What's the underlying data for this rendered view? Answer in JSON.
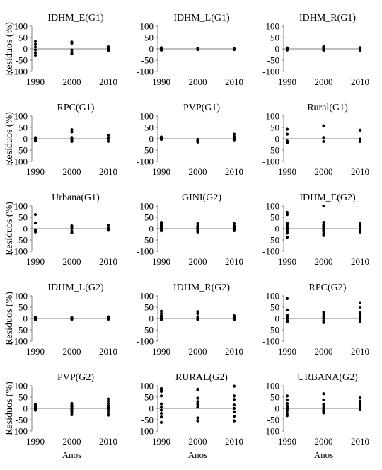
{
  "chart_data": [
    {
      "type": "scatter",
      "title": "IDHM_E(G1)",
      "ylabel": "Resíduos (%)",
      "xlabel": "",
      "x_ticks": [
        "1990",
        "2000",
        "2010"
      ],
      "yticks": [
        100,
        50,
        0,
        -50,
        -100
      ],
      "ylim": [
        -100,
        100
      ],
      "grid": false,
      "points": [
        [
          1990,
          32
        ],
        [
          1990,
          20
        ],
        [
          1990,
          8
        ],
        [
          1990,
          -5
        ],
        [
          1990,
          -18
        ],
        [
          1990,
          -28
        ],
        [
          2000,
          30
        ],
        [
          2000,
          25
        ],
        [
          2000,
          -5
        ],
        [
          2000,
          -15
        ],
        [
          2000,
          -22
        ],
        [
          2010,
          10
        ],
        [
          2010,
          5
        ],
        [
          2010,
          0
        ],
        [
          2010,
          -3
        ],
        [
          2010,
          -8
        ]
      ]
    },
    {
      "type": "scatter",
      "title": "IDHM_L(G1)",
      "ylabel": "",
      "xlabel": "",
      "x_ticks": [
        "1990",
        "2000",
        "2010"
      ],
      "yticks": [
        100,
        50,
        0,
        -50,
        -100
      ],
      "ylim": [
        -100,
        100
      ],
      "grid": false,
      "points": [
        [
          1990,
          5
        ],
        [
          1990,
          2
        ],
        [
          1990,
          0
        ],
        [
          1990,
          -3
        ],
        [
          1990,
          -6
        ],
        [
          2000,
          3
        ],
        [
          2000,
          0
        ],
        [
          2000,
          -3
        ],
        [
          2010,
          1
        ],
        [
          2010,
          -1
        ],
        [
          2010,
          -3
        ]
      ]
    },
    {
      "type": "scatter",
      "title": "IDHM_R(G1)",
      "ylabel": "",
      "xlabel": "",
      "x_ticks": [
        "1990",
        "2000",
        "2010"
      ],
      "yticks": [
        100,
        50,
        0,
        -50,
        -100
      ],
      "ylim": [
        -100,
        100
      ],
      "grid": false,
      "points": [
        [
          1990,
          4
        ],
        [
          1990,
          1
        ],
        [
          1990,
          -2
        ],
        [
          1990,
          -5
        ],
        [
          2000,
          10
        ],
        [
          2000,
          5
        ],
        [
          2000,
          -2
        ],
        [
          2000,
          -6
        ],
        [
          2010,
          5
        ],
        [
          2010,
          1
        ],
        [
          2010,
          -3
        ],
        [
          2010,
          -6
        ]
      ]
    },
    {
      "type": "scatter",
      "title": "RPC(G1)",
      "ylabel": "Resíduos (%)",
      "xlabel": "",
      "x_ticks": [
        "1990",
        "2000",
        "2010"
      ],
      "yticks": [
        100,
        50,
        0,
        -50,
        -100
      ],
      "ylim": [
        -100,
        100
      ],
      "grid": false,
      "points": [
        [
          1990,
          5
        ],
        [
          1990,
          0
        ],
        [
          1990,
          -3
        ],
        [
          1990,
          -8
        ],
        [
          1990,
          -10
        ],
        [
          2000,
          40
        ],
        [
          2000,
          30
        ],
        [
          2000,
          5
        ],
        [
          2000,
          -5
        ],
        [
          2000,
          -12
        ],
        [
          2010,
          15
        ],
        [
          2010,
          5
        ],
        [
          2010,
          -2
        ],
        [
          2010,
          -12
        ]
      ]
    },
    {
      "type": "scatter",
      "title": "PVP(G1)",
      "ylabel": "",
      "xlabel": "",
      "x_ticks": [
        "1990",
        "2000",
        "2010"
      ],
      "yticks": [
        100,
        50,
        0,
        -50,
        -100
      ],
      "ylim": [
        -100,
        100
      ],
      "grid": false,
      "points": [
        [
          1990,
          8
        ],
        [
          1990,
          4
        ],
        [
          1990,
          1
        ],
        [
          1990,
          -3
        ],
        [
          2000,
          -3
        ],
        [
          2000,
          -6
        ],
        [
          2000,
          -10
        ],
        [
          2000,
          -15
        ],
        [
          2010,
          20
        ],
        [
          2010,
          10
        ],
        [
          2010,
          2
        ],
        [
          2010,
          -5
        ]
      ]
    },
    {
      "type": "scatter",
      "title": "Rural(G1)",
      "ylabel": "",
      "xlabel": "",
      "x_ticks": [
        "1990",
        "2000",
        "2010"
      ],
      "yticks": [
        100,
        50,
        0,
        -50,
        -100
      ],
      "ylim": [
        -100,
        100
      ],
      "grid": false,
      "points": [
        [
          1990,
          42
        ],
        [
          1990,
          20
        ],
        [
          1990,
          -10
        ],
        [
          1990,
          -18
        ],
        [
          2000,
          57
        ],
        [
          2000,
          5
        ],
        [
          2000,
          -12
        ],
        [
          2010,
          38
        ],
        [
          2010,
          -2
        ],
        [
          2010,
          -12
        ]
      ]
    },
    {
      "type": "scatter",
      "title": "Urbana(G1)",
      "ylabel": "Resíduos (%)",
      "xlabel": "",
      "x_ticks": [
        "1990",
        "2000",
        "2010"
      ],
      "yticks": [
        100,
        50,
        0,
        -50,
        -100
      ],
      "ylim": [
        -100,
        100
      ],
      "grid": false,
      "points": [
        [
          1990,
          62
        ],
        [
          1990,
          25
        ],
        [
          1990,
          -5
        ],
        [
          1990,
          -15
        ],
        [
          2000,
          12
        ],
        [
          2000,
          2
        ],
        [
          2000,
          -10
        ],
        [
          2000,
          -18
        ],
        [
          2010,
          15
        ],
        [
          2010,
          5
        ],
        [
          2010,
          -3
        ],
        [
          2010,
          -8
        ]
      ]
    },
    {
      "type": "scatter",
      "title": "GINI(G2)",
      "ylabel": "",
      "xlabel": "",
      "x_ticks": [
        "1990",
        "2000",
        "2010"
      ],
      "yticks": [
        100,
        50,
        0,
        -50,
        -100
      ],
      "ylim": [
        -100,
        100
      ],
      "grid": false,
      "points": [
        [
          1990,
          28
        ],
        [
          1990,
          22
        ],
        [
          1990,
          15
        ],
        [
          1990,
          10
        ],
        [
          1990,
          5
        ],
        [
          1990,
          0
        ],
        [
          1990,
          -5
        ],
        [
          1990,
          -10
        ],
        [
          2000,
          22
        ],
        [
          2000,
          12
        ],
        [
          2000,
          5
        ],
        [
          2000,
          0
        ],
        [
          2000,
          -5
        ],
        [
          2000,
          -10
        ],
        [
          2000,
          -15
        ],
        [
          2010,
          22
        ],
        [
          2010,
          12
        ],
        [
          2010,
          6
        ],
        [
          2010,
          0
        ],
        [
          2010,
          -4
        ],
        [
          2010,
          -9
        ]
      ]
    },
    {
      "type": "scatter",
      "title": "IDHM_E(G2)",
      "ylabel": "",
      "xlabel": "",
      "x_ticks": [
        "1990",
        "2000",
        "2010"
      ],
      "yticks": [
        100,
        50,
        0,
        -50,
        -100
      ],
      "ylim": [
        -100,
        100
      ],
      "grid": false,
      "points": [
        [
          1990,
          72
        ],
        [
          1990,
          62
        ],
        [
          1990,
          25
        ],
        [
          1990,
          18
        ],
        [
          1990,
          10
        ],
        [
          1990,
          5
        ],
        [
          1990,
          0
        ],
        [
          1990,
          -5
        ],
        [
          1990,
          -12
        ],
        [
          1990,
          -20
        ],
        [
          1990,
          -38
        ],
        [
          2000,
          100
        ],
        [
          2000,
          28
        ],
        [
          2000,
          18
        ],
        [
          2000,
          12
        ],
        [
          2000,
          6
        ],
        [
          2000,
          0
        ],
        [
          2000,
          -6
        ],
        [
          2000,
          -12
        ],
        [
          2000,
          -22
        ],
        [
          2000,
          -30
        ],
        [
          2010,
          25
        ],
        [
          2010,
          18
        ],
        [
          2010,
          12
        ],
        [
          2010,
          8
        ],
        [
          2010,
          3
        ],
        [
          2010,
          -2
        ],
        [
          2010,
          -8
        ],
        [
          2010,
          -15
        ]
      ]
    },
    {
      "type": "scatter",
      "title": "IDHM_L(G2)",
      "ylabel": "Resíduos (%)",
      "xlabel": "",
      "x_ticks": [
        "1990",
        "2000",
        "2010"
      ],
      "yticks": [
        100,
        50,
        0,
        -50,
        -100
      ],
      "ylim": [
        -100,
        100
      ],
      "grid": false,
      "points": [
        [
          1990,
          6
        ],
        [
          1990,
          3
        ],
        [
          1990,
          0
        ],
        [
          1990,
          -3
        ],
        [
          1990,
          -6
        ],
        [
          2000,
          4
        ],
        [
          2000,
          1
        ],
        [
          2000,
          -2
        ],
        [
          2000,
          -4
        ],
        [
          2010,
          8
        ],
        [
          2010,
          4
        ],
        [
          2010,
          0
        ],
        [
          2010,
          -4
        ]
      ]
    },
    {
      "type": "scatter",
      "title": "IDHM_R(G2)",
      "ylabel": "",
      "xlabel": "",
      "x_ticks": [
        "1990",
        "2000",
        "2010"
      ],
      "yticks": [
        100,
        50,
        0,
        -50,
        -100
      ],
      "ylim": [
        -100,
        100
      ],
      "grid": false,
      "points": [
        [
          1990,
          32
        ],
        [
          1990,
          22
        ],
        [
          1990,
          12
        ],
        [
          1990,
          5
        ],
        [
          1990,
          0
        ],
        [
          1990,
          -5
        ],
        [
          2000,
          30
        ],
        [
          2000,
          22
        ],
        [
          2000,
          8
        ],
        [
          2000,
          0
        ],
        [
          2000,
          -5
        ],
        [
          2010,
          12
        ],
        [
          2010,
          6
        ],
        [
          2010,
          0
        ],
        [
          2010,
          -5
        ]
      ]
    },
    {
      "type": "scatter",
      "title": "RPC(G2)",
      "ylabel": "",
      "xlabel": "",
      "x_ticks": [
        "1990",
        "2000",
        "2010"
      ],
      "yticks": [
        100,
        50,
        0,
        -50,
        -100
      ],
      "ylim": [
        -100,
        100
      ],
      "grid": false,
      "points": [
        [
          1990,
          88
        ],
        [
          1990,
          38
        ],
        [
          1990,
          15
        ],
        [
          1990,
          8
        ],
        [
          1990,
          0
        ],
        [
          1990,
          -8
        ],
        [
          1990,
          -15
        ],
        [
          2000,
          28
        ],
        [
          2000,
          18
        ],
        [
          2000,
          8
        ],
        [
          2000,
          0
        ],
        [
          2000,
          -10
        ],
        [
          2000,
          -18
        ],
        [
          2010,
          70
        ],
        [
          2010,
          48
        ],
        [
          2010,
          25
        ],
        [
          2010,
          15
        ],
        [
          2010,
          5
        ],
        [
          2010,
          -5
        ],
        [
          2010,
          -15
        ]
      ]
    },
    {
      "type": "scatter",
      "title": "PVP(G2)",
      "ylabel": "Resíduos (%)",
      "xlabel": "Anos",
      "x_ticks": [
        "1990",
        "2000",
        "2010"
      ],
      "yticks": [
        100,
        50,
        0,
        -50,
        -100
      ],
      "ylim": [
        -100,
        100
      ],
      "grid": false,
      "points": [
        [
          1990,
          18
        ],
        [
          1990,
          12
        ],
        [
          1990,
          8
        ],
        [
          1990,
          4
        ],
        [
          1990,
          0
        ],
        [
          1990,
          -4
        ],
        [
          1990,
          -8
        ],
        [
          2000,
          22
        ],
        [
          2000,
          15
        ],
        [
          2000,
          8
        ],
        [
          2000,
          2
        ],
        [
          2000,
          -5
        ],
        [
          2000,
          -12
        ],
        [
          2000,
          -20
        ],
        [
          2000,
          -28
        ],
        [
          2010,
          42
        ],
        [
          2010,
          32
        ],
        [
          2010,
          22
        ],
        [
          2010,
          12
        ],
        [
          2010,
          5
        ],
        [
          2010,
          -3
        ],
        [
          2010,
          -12
        ],
        [
          2010,
          -22
        ],
        [
          2010,
          -30
        ]
      ]
    },
    {
      "type": "scatter",
      "title": "RURAL(G2)",
      "ylabel": "",
      "xlabel": "Anos",
      "x_ticks": [
        "1990",
        "2000",
        "2010"
      ],
      "yticks": [
        100,
        50,
        0,
        -50,
        -100
      ],
      "ylim": [
        -100,
        100
      ],
      "grid": false,
      "points": [
        [
          1990,
          88
        ],
        [
          1990,
          82
        ],
        [
          1990,
          75
        ],
        [
          1990,
          55
        ],
        [
          1990,
          20
        ],
        [
          1990,
          5
        ],
        [
          1990,
          -8
        ],
        [
          1990,
          -22
        ],
        [
          1990,
          -38
        ],
        [
          1990,
          -62
        ],
        [
          2000,
          85
        ],
        [
          2000,
          82
        ],
        [
          2000,
          45
        ],
        [
          2000,
          30
        ],
        [
          2000,
          18
        ],
        [
          2000,
          5
        ],
        [
          2000,
          -42
        ],
        [
          2000,
          -55
        ],
        [
          2010,
          98
        ],
        [
          2010,
          55
        ],
        [
          2010,
          40
        ],
        [
          2010,
          15
        ],
        [
          2010,
          0
        ],
        [
          2010,
          -15
        ],
        [
          2010,
          -35
        ],
        [
          2010,
          -55
        ]
      ]
    },
    {
      "type": "scatter",
      "title": "URBANA(G2)",
      "ylabel": "",
      "xlabel": "Anos",
      "x_ticks": [
        "1990",
        "2000",
        "2010"
      ],
      "yticks": [
        100,
        50,
        0,
        -50,
        -100
      ],
      "ylim": [
        -100,
        100
      ],
      "grid": false,
      "points": [
        [
          1990,
          55
        ],
        [
          1990,
          38
        ],
        [
          1990,
          22
        ],
        [
          1990,
          12
        ],
        [
          1990,
          5
        ],
        [
          1990,
          -2
        ],
        [
          1990,
          -10
        ],
        [
          1990,
          -22
        ],
        [
          1990,
          -32
        ],
        [
          2000,
          65
        ],
        [
          2000,
          38
        ],
        [
          2000,
          18
        ],
        [
          2000,
          10
        ],
        [
          2000,
          2
        ],
        [
          2000,
          -5
        ],
        [
          2000,
          -10
        ],
        [
          2000,
          -15
        ],
        [
          2000,
          -20
        ],
        [
          2010,
          48
        ],
        [
          2010,
          32
        ],
        [
          2010,
          22
        ],
        [
          2010,
          12
        ],
        [
          2010,
          5
        ],
        [
          2010,
          0
        ],
        [
          2010,
          -5
        ]
      ]
    }
  ]
}
